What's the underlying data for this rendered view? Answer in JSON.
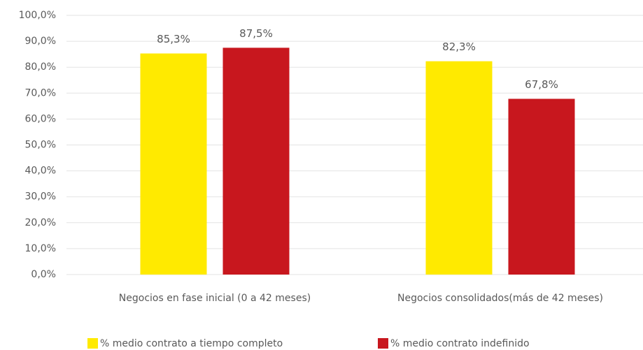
{
  "chart_data": {
    "type": "bar",
    "categories": [
      "Negocios en fase inicial (0 a 42 meses)",
      "Negocios consolidados(más de 42 meses)"
    ],
    "series": [
      {
        "name": "% medio contrato a tiempo completo",
        "color": "#ffea00",
        "values": [
          85.3,
          82.3
        ],
        "value_labels": [
          "85,3%",
          "82,3%"
        ]
      },
      {
        "name": "% medio contrato indefinido",
        "color": "#c8171e",
        "values": [
          87.5,
          67.8
        ],
        "value_labels": [
          "87,5%",
          "67,8%"
        ]
      }
    ],
    "ylim": [
      0,
      100
    ],
    "yticks": [
      {
        "value": 0,
        "label": "0,0%"
      },
      {
        "value": 10,
        "label": "10,0%"
      },
      {
        "value": 20,
        "label": "20,0%"
      },
      {
        "value": 30,
        "label": "30,0%"
      },
      {
        "value": 40,
        "label": "40,0%"
      },
      {
        "value": 50,
        "label": "50,0%"
      },
      {
        "value": 60,
        "label": "60,0%"
      },
      {
        "value": 70,
        "label": "70,0%"
      },
      {
        "value": 80,
        "label": "80,0%"
      },
      {
        "value": 90,
        "label": "90,0%"
      },
      {
        "value": 100,
        "label": "100,0%"
      }
    ],
    "grid": true,
    "legend": "bottom"
  }
}
